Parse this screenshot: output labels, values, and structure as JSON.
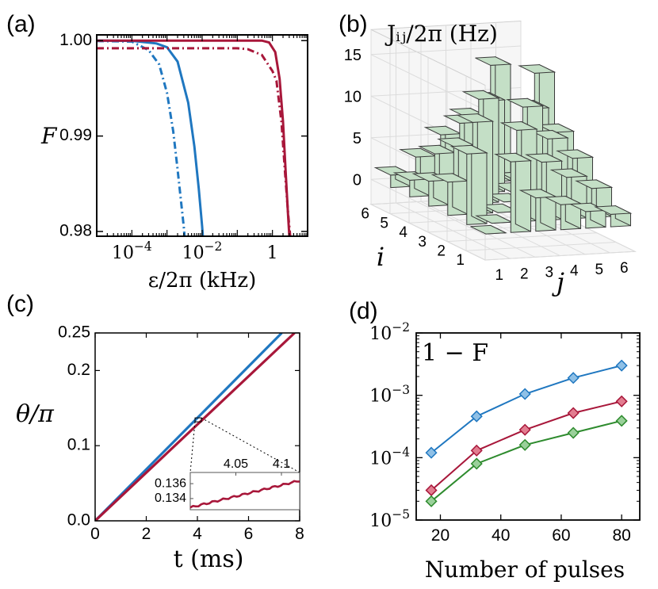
{
  "colors": {
    "blue": "#1f77c0",
    "red": "#a8173a",
    "green": "#2e8b2e",
    "bar_face": "#c4dfc6",
    "bar_edge": "#3a3a3a",
    "marker_blue": "#8fc0e6",
    "marker_red": "#e27d90",
    "marker_green": "#9ad09a"
  },
  "chart_data": [
    {
      "panel": "(a)",
      "type": "line",
      "ylabel": "F",
      "xlabel": "ε/2π (kHz)",
      "xscale": "log",
      "xlim": [
        1e-05,
        10
      ],
      "ylim": [
        0.9795,
        1.0006
      ],
      "xticks": [
        {
          "v": 0.0001,
          "base": "10",
          "exp": "−4"
        },
        {
          "v": 0.01,
          "base": "10",
          "exp": "−2"
        },
        {
          "v": 1,
          "base": "1",
          "exp": ""
        }
      ],
      "yticks": [
        {
          "v": 1.0,
          "label": "1.00"
        },
        {
          "v": 0.99,
          "label": "0.99"
        },
        {
          "v": 0.98,
          "label": "0.98"
        }
      ],
      "series": [
        {
          "name": "blue-solid",
          "color": "blue",
          "dash": "solid",
          "x": [
            1e-05,
            0.0001,
            0.0005,
            0.001,
            0.002,
            0.004,
            0.006,
            0.008,
            0.01,
            0.012
          ],
          "y": [
            1.0,
            0.99998,
            0.9997,
            0.9993,
            0.9978,
            0.9935,
            0.9889,
            0.9845,
            0.9805,
            0.9765
          ]
        },
        {
          "name": "blue-dashdot",
          "color": "blue",
          "dash": "dashdot",
          "x": [
            1e-05,
            0.0001,
            0.0003,
            0.0006,
            0.001,
            0.0015,
            0.002,
            0.003,
            0.0035
          ],
          "y": [
            0.99995,
            0.9999,
            0.999,
            0.9975,
            0.9945,
            0.9905,
            0.9865,
            0.9805,
            0.9775
          ]
        },
        {
          "name": "red-solid",
          "color": "red",
          "dash": "solid",
          "x": [
            1e-05,
            0.5,
            0.8,
            1.2,
            1.6,
            2.0,
            2.4,
            2.8,
            3.2
          ],
          "y": [
            1.0,
            1.0,
            0.9998,
            0.9988,
            0.996,
            0.9915,
            0.986,
            0.9815,
            0.978
          ]
        },
        {
          "name": "red-dashdot",
          "color": "red",
          "dash": "dashdot",
          "x": [
            1e-05,
            0.1,
            0.2,
            0.5,
            1.0,
            1.3,
            1.8,
            2.3,
            2.8,
            3.5
          ],
          "y": [
            0.9992,
            0.9992,
            0.9991,
            0.9985,
            0.9968,
            0.9958,
            0.9915,
            0.986,
            0.9818,
            0.978
          ]
        }
      ]
    },
    {
      "panel": "(b)",
      "type": "bar3d",
      "title": "Jᵢⱼ/2π (Hz)",
      "xlabel": "j",
      "ylabel": "i",
      "zlim": [
        0,
        15
      ],
      "zticks": [
        0,
        5,
        10,
        15
      ],
      "j_ticks": [
        1,
        2,
        3,
        4,
        5,
        6
      ],
      "i_ticks": [
        1,
        2,
        3,
        4,
        5,
        6
      ],
      "matrix": [
        [
          0,
          8.5,
          4,
          3,
          2,
          1.5
        ],
        [
          8.5,
          0,
          11,
          7,
          5,
          3.5
        ],
        [
          4,
          11,
          0,
          12.5,
          8.5,
          6
        ],
        [
          3,
          7,
          12.5,
          0,
          11,
          8
        ],
        [
          2,
          5,
          8.5,
          11,
          0,
          14
        ],
        [
          1.5,
          3.5,
          6,
          8,
          14,
          0
        ]
      ]
    },
    {
      "panel": "(c)",
      "type": "line",
      "ylabel": "θ/π",
      "xlabel": "t (ms)",
      "xlim": [
        0,
        8
      ],
      "ylim": [
        0,
        0.25
      ],
      "xticks": [
        0,
        2,
        4,
        6,
        8
      ],
      "ytick_labels": [
        "0.0",
        "0.1",
        "0.2",
        "0.25"
      ],
      "yticks": [
        0,
        0.1,
        0.2,
        0.25
      ],
      "series": [
        {
          "name": "blue",
          "color": "blue",
          "x": [
            0,
            7.3
          ],
          "y": [
            0,
            0.25
          ]
        },
        {
          "name": "red",
          "color": "red",
          "x": [
            0,
            7.8
          ],
          "y": [
            0,
            0.25
          ]
        }
      ],
      "inset": {
        "xlim": [
          4.0,
          4.12
        ],
        "ylim": [
          0.1325,
          0.1375
        ],
        "xticks": [
          {
            "v": 4.05,
            "label": "4.05"
          },
          {
            "v": 4.1,
            "label": "4.1"
          }
        ],
        "yticks": [
          {
            "v": 0.136,
            "label": "0.136"
          },
          {
            "v": 0.134,
            "label": "0.134"
          }
        ],
        "x0": 4.0,
        "y0": 0.1328,
        "x1": 4.12,
        "y1": 0.1364
      }
    },
    {
      "panel": "(d)",
      "type": "line",
      "annotation": "1 − F",
      "xlabel": "Number of pulses",
      "yscale": "log",
      "xlim": [
        12,
        86
      ],
      "ylim": [
        1e-05,
        0.01
      ],
      "xticks": [
        20,
        40,
        60,
        80
      ],
      "yticks": [
        {
          "v": 0.01,
          "exp": "−2"
        },
        {
          "v": 0.001,
          "exp": "−3"
        },
        {
          "v": 0.0001,
          "exp": "−4"
        },
        {
          "v": 1e-05,
          "exp": "−5"
        }
      ],
      "series": [
        {
          "name": "blue",
          "color": "blue",
          "marker": "marker_blue",
          "x": [
            17,
            32,
            48,
            64,
            80
          ],
          "y": [
            0.00012,
            0.00046,
            0.00105,
            0.0019,
            0.003
          ]
        },
        {
          "name": "red",
          "color": "red",
          "marker": "marker_red",
          "x": [
            17,
            32,
            48,
            64,
            80
          ],
          "y": [
            3e-05,
            0.00013,
            0.00028,
            0.00052,
            0.0008
          ]
        },
        {
          "name": "green",
          "color": "green",
          "marker": "marker_green",
          "x": [
            17,
            32,
            48,
            64,
            80
          ],
          "y": [
            2e-05,
            8e-05,
            0.00016,
            0.00025,
            0.00039
          ]
        }
      ]
    }
  ],
  "panel_labels": [
    "(a)",
    "(b)",
    "(c)",
    "(d)"
  ],
  "base_ten": "10"
}
